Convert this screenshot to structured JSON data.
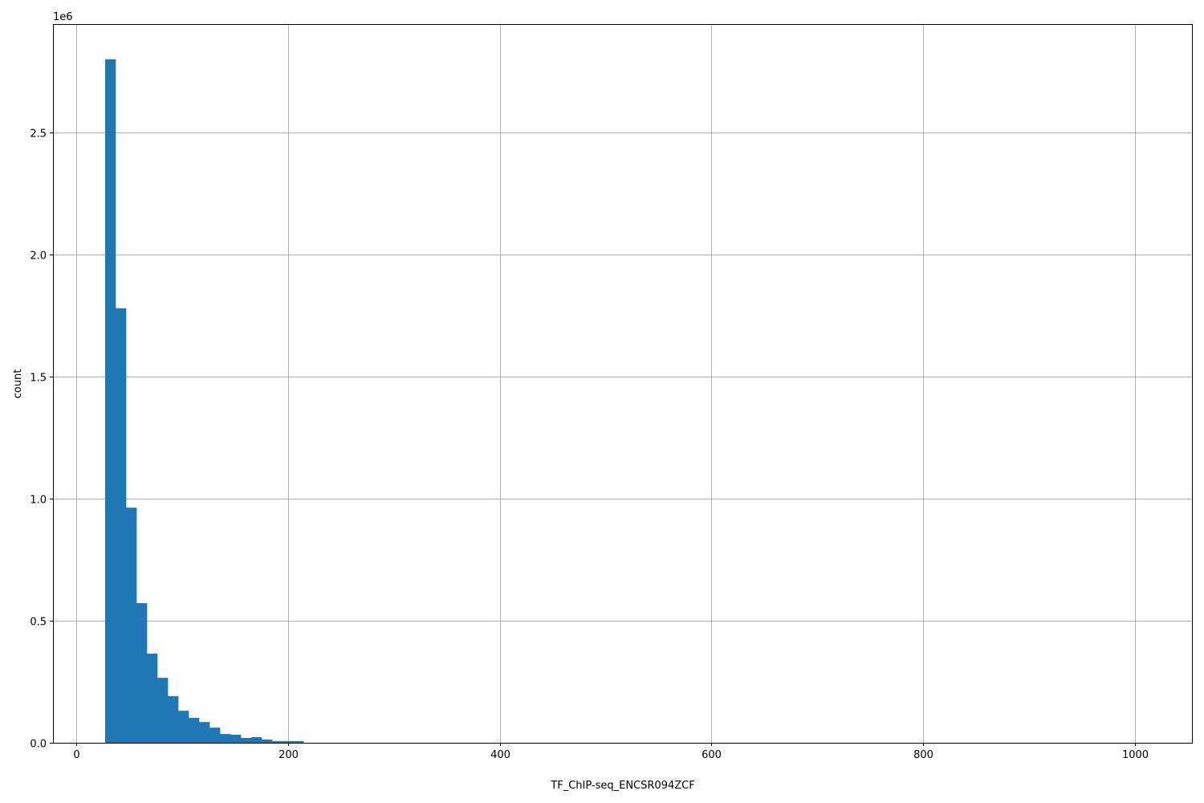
{
  "chart_data": {
    "type": "bar",
    "subtype": "histogram",
    "xlabel": "TF_ChIP-seq_ENCSR094ZCF",
    "ylabel": "count",
    "y_offset_label": "1e6",
    "bar_color": "#1f77b4",
    "grid": true,
    "xlim": [
      -22,
      1054
    ],
    "ylim": [
      0,
      2944000
    ],
    "xticks": [
      0,
      200,
      400,
      600,
      800,
      1000
    ],
    "xtick_labels": [
      "0",
      "200",
      "400",
      "600",
      "800",
      "1000"
    ],
    "yticks": [
      0,
      500000,
      1000000,
      1500000,
      2000000,
      2500000
    ],
    "ytick_labels": [
      "0.0",
      "0.5",
      "1.0",
      "1.5",
      "2.0",
      "2.5"
    ],
    "bin_start": 27.3,
    "bin_width": 9.86,
    "counts": [
      2800000,
      1780000,
      963000,
      572000,
      365000,
      266000,
      191000,
      131000,
      102000,
      85000,
      62000,
      36000,
      33000,
      20000,
      23000,
      13000,
      7000,
      7000,
      7000,
      0,
      0,
      0,
      0,
      0,
      0,
      0,
      0,
      0,
      0,
      0,
      0,
      0,
      0,
      0,
      0,
      0,
      0,
      0,
      0,
      0,
      0,
      0,
      0,
      0,
      0,
      0,
      0,
      0,
      0,
      0,
      0,
      0,
      0,
      0,
      0,
      0,
      0,
      0,
      0,
      0,
      0,
      0,
      0,
      0,
      0,
      0,
      0,
      0,
      0,
      0,
      0,
      0,
      0,
      0,
      0,
      0,
      0,
      0,
      0,
      0,
      0,
      0,
      0,
      0,
      0,
      0,
      0,
      0,
      0,
      0,
      0,
      0,
      0,
      0,
      0,
      0,
      0,
      0,
      0,
      0
    ]
  }
}
